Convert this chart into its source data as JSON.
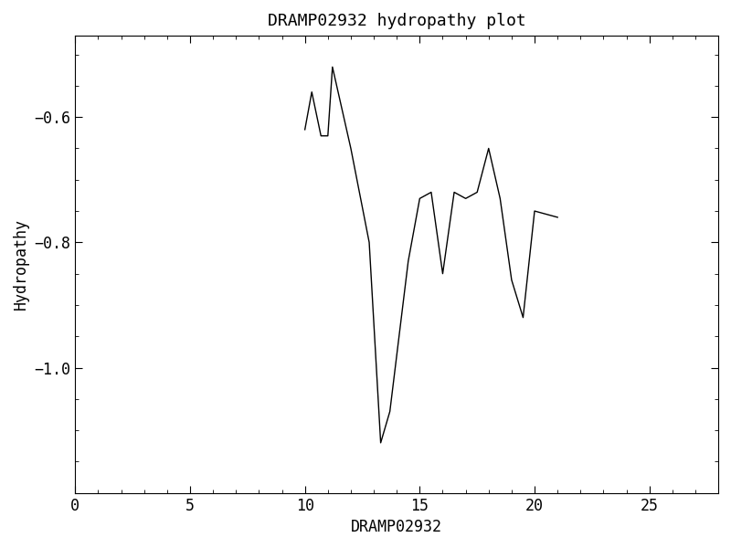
{
  "title": "DRAMP02932 hydropathy plot",
  "xlabel": "DRAMP02932",
  "ylabel": "Hydropathy",
  "xlim": [
    0,
    28
  ],
  "ylim": [
    -1.2,
    -0.47
  ],
  "xticks": [
    0,
    5,
    10,
    15,
    20,
    25
  ],
  "yticks": [
    -1.0,
    -0.8,
    -0.6
  ],
  "x": [
    10.0,
    10.3,
    10.7,
    11.0,
    11.2,
    12.0,
    12.8,
    13.3,
    13.7,
    14.5,
    15.0,
    15.5,
    16.0,
    16.5,
    17.0,
    17.5,
    18.0,
    18.5,
    19.0,
    19.5,
    20.0,
    21.0
  ],
  "y": [
    -0.62,
    -0.56,
    -0.63,
    -0.63,
    -0.52,
    -0.65,
    -0.8,
    -1.12,
    -1.07,
    -0.83,
    -0.73,
    -0.72,
    -0.85,
    -0.72,
    -0.73,
    -0.72,
    -0.65,
    -0.73,
    -0.86,
    -0.92,
    -0.75,
    -0.76
  ],
  "line_color": "#000000",
  "line_width": 1.0,
  "background_color": "#ffffff",
  "font_family": "monospace",
  "title_fontsize": 13,
  "label_fontsize": 12,
  "tick_labelsize": 12
}
